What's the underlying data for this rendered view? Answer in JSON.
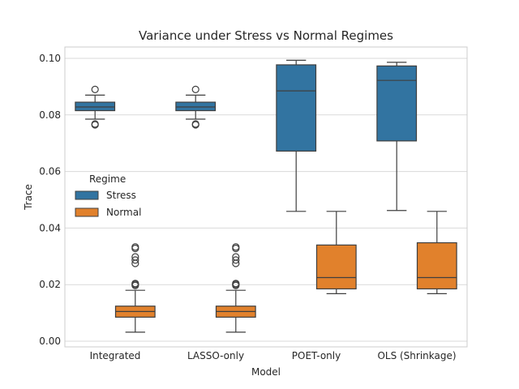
{
  "chart_data": {
    "type": "box",
    "title": "Variance under Stress vs Normal Regimes",
    "xlabel": "Model",
    "ylabel": "Trace",
    "categories": [
      "Integrated",
      "LASSO-only",
      "POET-only",
      "OLS (Shrinkage)"
    ],
    "ylim": [
      -0.002,
      0.104
    ],
    "yticks": [
      "0.00",
      "0.02",
      "0.04",
      "0.06",
      "0.08",
      "0.10"
    ],
    "grid": true,
    "legend": {
      "title": "Regime",
      "placement": "center-left",
      "entries": [
        "Stress",
        "Normal"
      ]
    },
    "series": [
      {
        "name": "Stress",
        "color": "#3274a1",
        "boxes": [
          {
            "whislo": 0.0785,
            "q1": 0.0815,
            "med": 0.0828,
            "q3": 0.0845,
            "whishi": 0.087,
            "fliers": [
              0.0765,
              0.0768,
              0.089
            ]
          },
          {
            "whislo": 0.0785,
            "q1": 0.0815,
            "med": 0.0828,
            "q3": 0.0845,
            "whishi": 0.087,
            "fliers": [
              0.0765,
              0.0768,
              0.089
            ]
          },
          {
            "whislo": 0.0459,
            "q1": 0.0672,
            "med": 0.0885,
            "q3": 0.0977,
            "whishi": 0.0993,
            "fliers": []
          },
          {
            "whislo": 0.0462,
            "q1": 0.0708,
            "med": 0.0922,
            "q3": 0.0973,
            "whishi": 0.0986,
            "fliers": []
          }
        ]
      },
      {
        "name": "Normal",
        "color": "#e1812c",
        "boxes": [
          {
            "whislo": 0.0032,
            "q1": 0.0085,
            "med": 0.0105,
            "q3": 0.0124,
            "whishi": 0.018,
            "fliers": [
              0.0197,
              0.0201,
              0.0204,
              0.0275,
              0.0287,
              0.0298,
              0.0328,
              0.0333
            ]
          },
          {
            "whislo": 0.0032,
            "q1": 0.0085,
            "med": 0.0105,
            "q3": 0.0124,
            "whishi": 0.018,
            "fliers": [
              0.0197,
              0.0201,
              0.0204,
              0.0275,
              0.0287,
              0.0298,
              0.0328,
              0.0333
            ]
          },
          {
            "whislo": 0.0168,
            "q1": 0.0185,
            "med": 0.0225,
            "q3": 0.034,
            "whishi": 0.0459,
            "fliers": []
          },
          {
            "whislo": 0.0168,
            "q1": 0.0185,
            "med": 0.0225,
            "q3": 0.0348,
            "whishi": 0.0459,
            "fliers": []
          }
        ]
      }
    ]
  }
}
